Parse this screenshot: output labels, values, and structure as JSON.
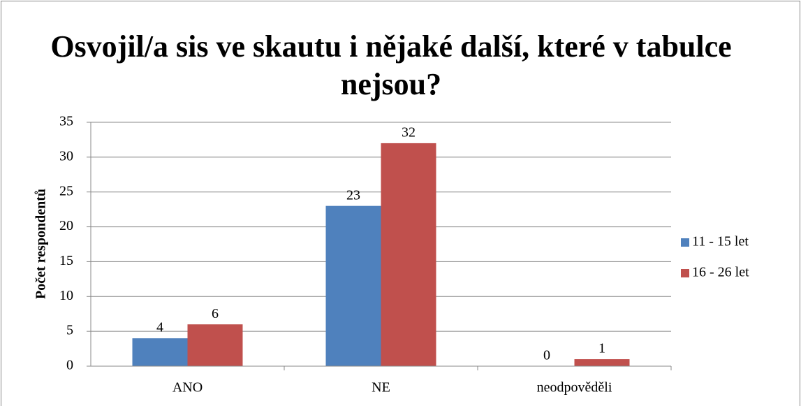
{
  "chart_data": {
    "type": "bar",
    "title": "Osvojil/a sis ve skautu i nějaké další, které v tabulce nejsou?",
    "y_label": "Počet respondentů",
    "categories": [
      "ANO",
      "NE",
      "neodpověděli"
    ],
    "series": [
      {
        "name": "11 - 15 let",
        "color": "#4f81bd",
        "values": [
          4,
          23,
          0
        ]
      },
      {
        "name": "16 - 26 let",
        "color": "#c0504d",
        "values": [
          6,
          32,
          1
        ]
      }
    ],
    "ylim": [
      0,
      35
    ],
    "yticks": [
      0,
      5,
      10,
      15,
      20,
      25,
      30,
      35
    ],
    "grid": true,
    "legend": "right"
  }
}
